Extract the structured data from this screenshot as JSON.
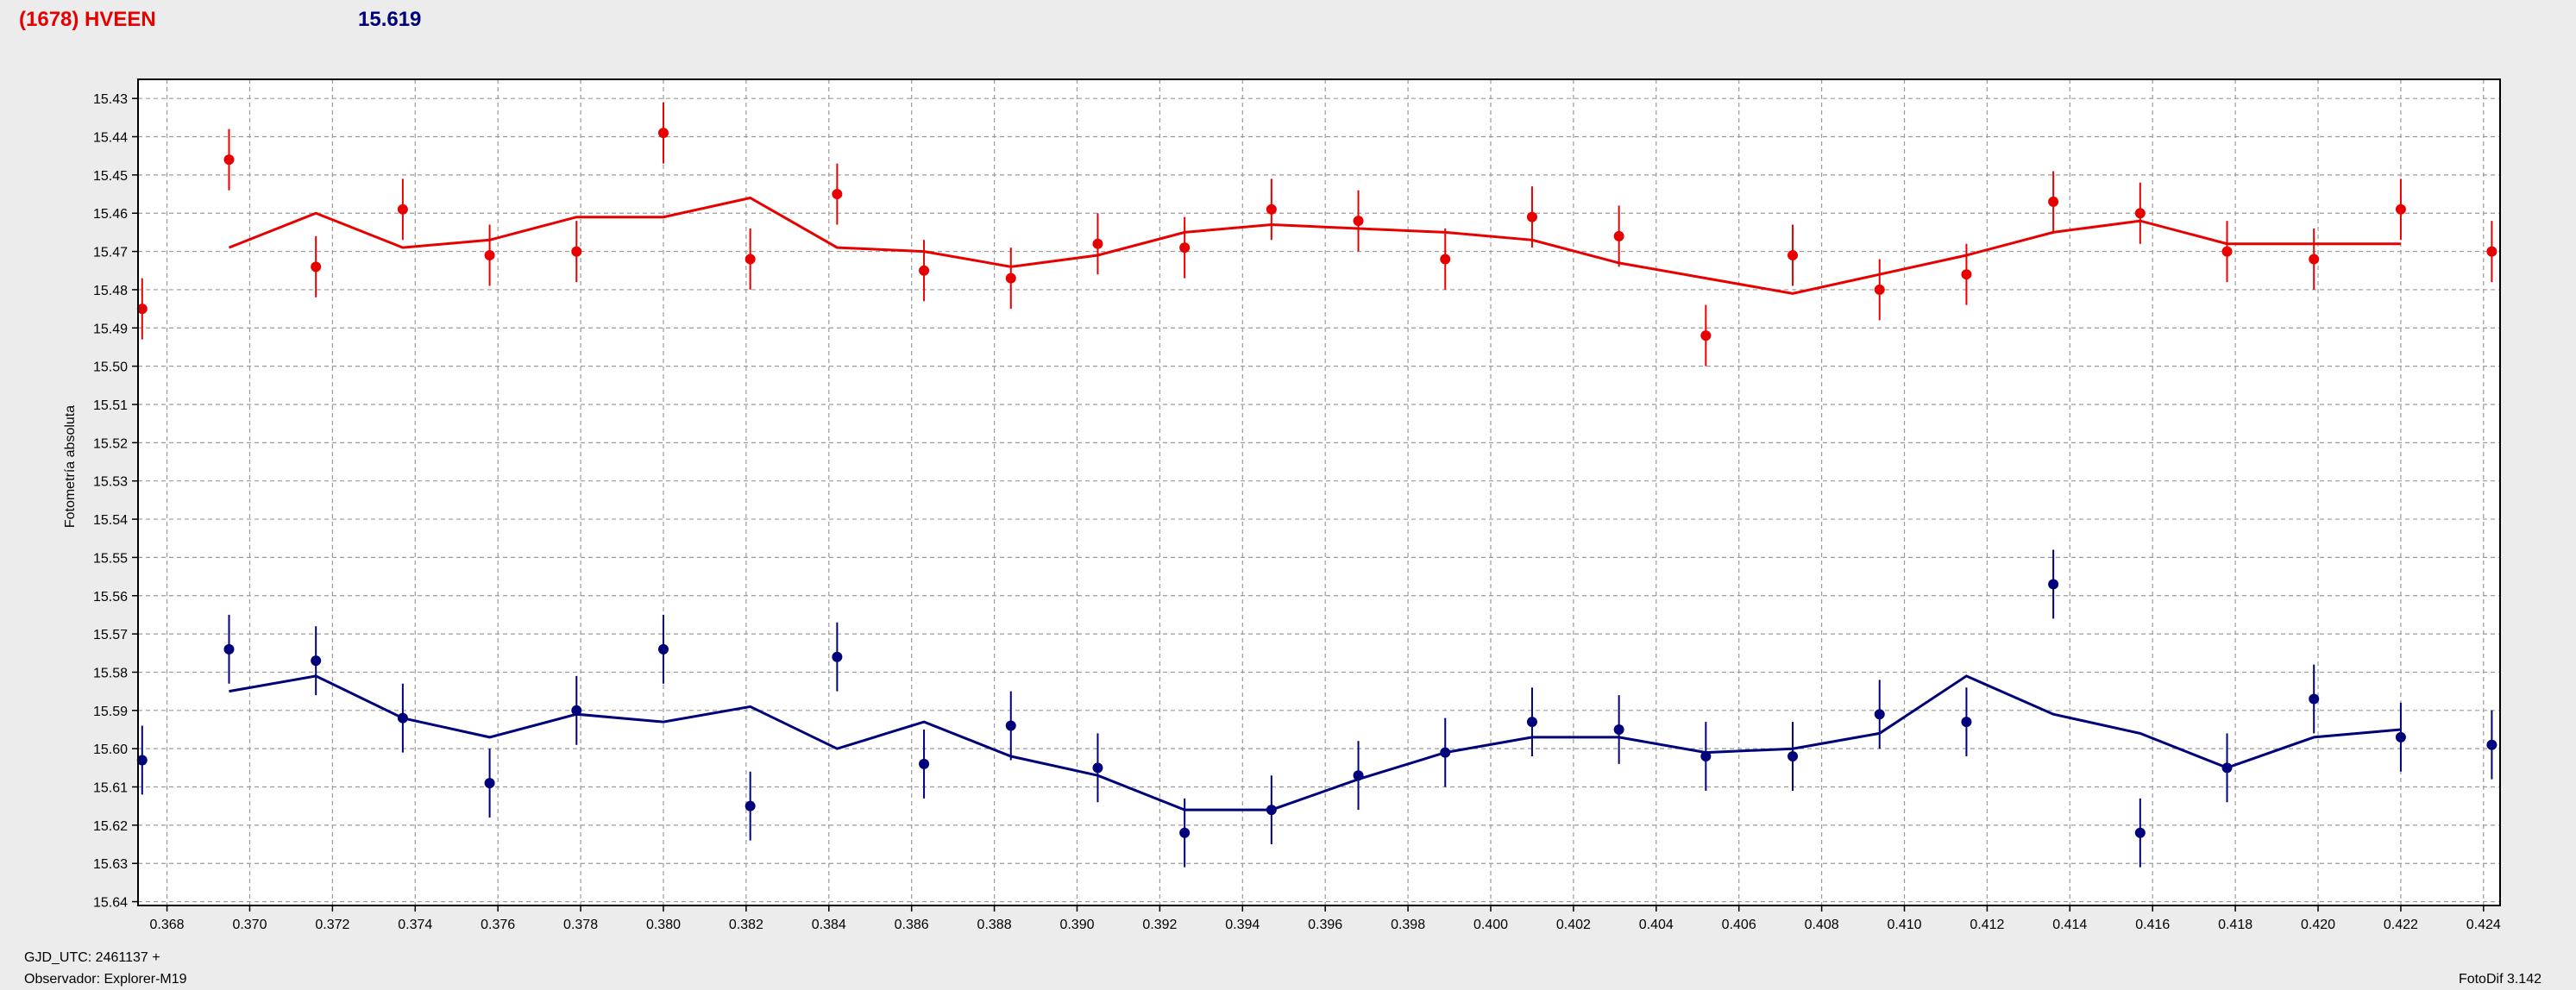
{
  "header": {
    "object_name": "(1678) HVEEN",
    "magnitude": "15.619"
  },
  "footer": {
    "gjd_label": "GJD_UTC: 2461137 +",
    "observer_label": "Observador: Explorer-M19",
    "software_version": "FotoDif 3.142"
  },
  "colors": {
    "background": "#ececec",
    "plot_background": "#ffffff",
    "grid": "#9a9a9a",
    "red_series": "#e80000",
    "blue_series": "#00007a"
  },
  "chart_data": {
    "type": "scatter",
    "title": "",
    "xlabel": "",
    "ylabel": "Fotometría absoluta",
    "xlim": [
      0.3673,
      0.4244
    ],
    "ylim": [
      15.425,
      15.641
    ],
    "y_reversed": true,
    "grid": true,
    "x_ticks": [
      "0.368",
      "0.370",
      "0.372",
      "0.374",
      "0.376",
      "0.378",
      "0.380",
      "0.382",
      "0.384",
      "0.386",
      "0.388",
      "0.390",
      "0.392",
      "0.394",
      "0.396",
      "0.398",
      "0.400",
      "0.402",
      "0.404",
      "0.406",
      "0.408",
      "0.410",
      "0.412",
      "0.414",
      "0.416",
      "0.418",
      "0.420",
      "0.422",
      "0.424"
    ],
    "y_ticks": [
      "15.43",
      "15.44",
      "15.45",
      "15.46",
      "15.47",
      "15.48",
      "15.49",
      "15.50",
      "15.51",
      "15.52",
      "15.53",
      "15.54",
      "15.55",
      "15.56",
      "15.57",
      "15.58",
      "15.59",
      "15.60",
      "15.61",
      "15.62",
      "15.63",
      "15.64"
    ],
    "series": [
      {
        "color": "#e80000",
        "x": [
          0.3674,
          0.3695,
          0.3716,
          0.3737,
          0.3758,
          0.3779,
          0.38,
          0.3821,
          0.3842,
          0.3863,
          0.3884,
          0.3905,
          0.3926,
          0.3947,
          0.3968,
          0.3989,
          0.401,
          0.4031,
          0.4052,
          0.4073,
          0.4094,
          0.4115,
          0.4136,
          0.4157,
          0.4178,
          0.4199,
          0.422,
          0.4242
        ],
        "y": [
          15.485,
          15.446,
          15.474,
          15.459,
          15.471,
          15.47,
          15.439,
          15.472,
          15.455,
          15.475,
          15.477,
          15.468,
          15.469,
          15.459,
          15.462,
          15.472,
          15.461,
          15.466,
          15.492,
          15.471,
          15.48,
          15.476,
          15.457,
          15.46,
          15.47,
          15.472,
          15.459,
          15.47
        ],
        "err": [
          0.008,
          0.008,
          0.008,
          0.008,
          0.008,
          0.008,
          0.008,
          0.008,
          0.008,
          0.008,
          0.008,
          0.008,
          0.008,
          0.008,
          0.008,
          0.008,
          0.008,
          0.008,
          0.008,
          0.008,
          0.008,
          0.008,
          0.008,
          0.008,
          0.008,
          0.008,
          0.008,
          0.008
        ],
        "fit_x": [
          0.3695,
          0.3716,
          0.3737,
          0.3758,
          0.3779,
          0.38,
          0.3821,
          0.3842,
          0.3863,
          0.3884,
          0.3905,
          0.3926,
          0.3947,
          0.3968,
          0.3989,
          0.401,
          0.4031,
          0.4052,
          0.4073,
          0.4094,
          0.4115,
          0.4136,
          0.4157,
          0.4178,
          0.4199,
          0.422
        ],
        "fit_y": [
          15.469,
          15.46,
          15.469,
          15.467,
          15.461,
          15.461,
          15.456,
          15.469,
          15.47,
          15.474,
          15.471,
          15.465,
          15.463,
          15.464,
          15.465,
          15.467,
          15.473,
          15.477,
          15.481,
          15.476,
          15.471,
          15.465,
          15.462,
          15.468,
          15.468,
          15.468
        ]
      },
      {
        "color": "#00007a",
        "x": [
          0.3674,
          0.3695,
          0.3716,
          0.3737,
          0.3758,
          0.3779,
          0.38,
          0.3821,
          0.3842,
          0.3863,
          0.3884,
          0.3905,
          0.3926,
          0.3947,
          0.3968,
          0.3989,
          0.401,
          0.4031,
          0.4052,
          0.4073,
          0.4094,
          0.4115,
          0.4136,
          0.4157,
          0.4178,
          0.4199,
          0.422,
          0.4242
        ],
        "y": [
          15.603,
          15.574,
          15.577,
          15.592,
          15.609,
          15.59,
          15.574,
          15.615,
          15.576,
          15.604,
          15.594,
          15.605,
          15.622,
          15.616,
          15.607,
          15.601,
          15.593,
          15.595,
          15.602,
          15.602,
          15.591,
          15.593,
          15.557,
          15.622,
          15.605,
          15.587,
          15.597,
          15.599
        ],
        "err": [
          0.009,
          0.009,
          0.009,
          0.009,
          0.009,
          0.009,
          0.009,
          0.009,
          0.009,
          0.009,
          0.009,
          0.009,
          0.009,
          0.009,
          0.009,
          0.009,
          0.009,
          0.009,
          0.009,
          0.009,
          0.009,
          0.009,
          0.009,
          0.009,
          0.009,
          0.009,
          0.009,
          0.009
        ],
        "fit_x": [
          0.3695,
          0.3716,
          0.3737,
          0.3758,
          0.3779,
          0.38,
          0.3821,
          0.3842,
          0.3863,
          0.3884,
          0.3905,
          0.3926,
          0.3947,
          0.3968,
          0.3989,
          0.401,
          0.4031,
          0.4052,
          0.4073,
          0.4094,
          0.4115,
          0.4136,
          0.4157,
          0.4178,
          0.4199,
          0.422
        ],
        "fit_y": [
          15.585,
          15.581,
          15.592,
          15.597,
          15.591,
          15.593,
          15.589,
          15.6,
          15.593,
          15.602,
          15.607,
          15.616,
          15.616,
          15.608,
          15.601,
          15.597,
          15.597,
          15.601,
          15.6,
          15.596,
          15.581,
          15.591,
          15.596,
          15.605,
          15.597,
          15.595
        ]
      }
    ]
  }
}
